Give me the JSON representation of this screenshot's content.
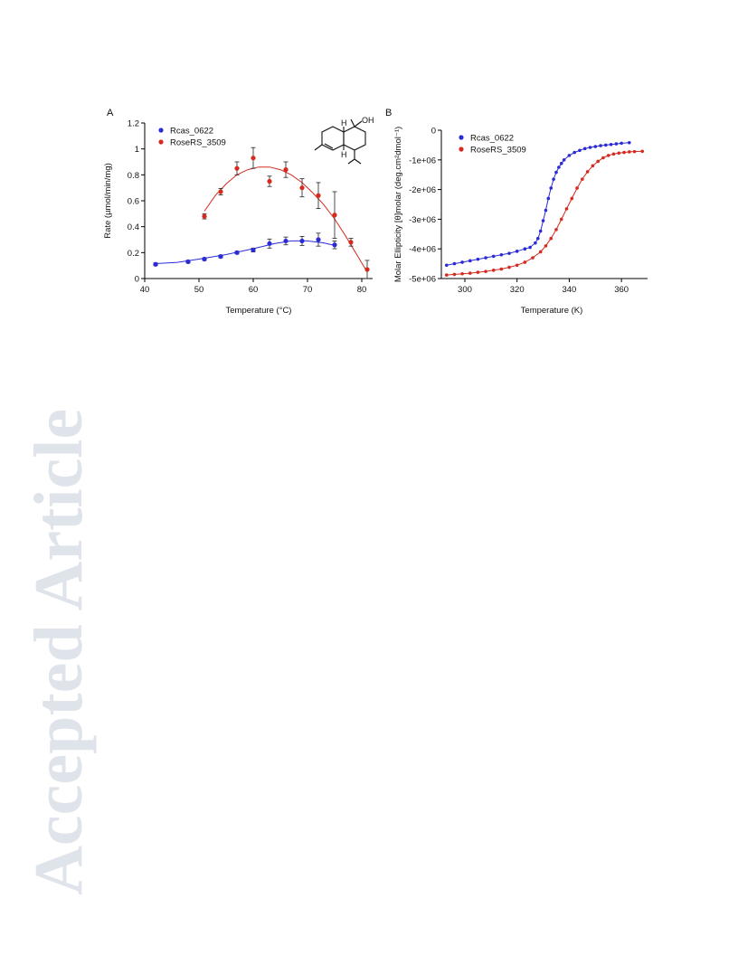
{
  "watermark": {
    "text": "Accepted Article"
  },
  "colors": {
    "rcas": "#2b2bd6",
    "rose": "#d42a1f",
    "watermark": "#dfe3ea"
  },
  "chart_data": [
    {
      "panel": "A",
      "type": "scatter",
      "xlabel": "Temperature (°C)",
      "ylabel": "Rate (µmol/min/mg)",
      "xlim": [
        40,
        82
      ],
      "ylim": [
        0,
        1.2
      ],
      "xticks": [
        "40",
        "50",
        "60",
        "70",
        "80"
      ],
      "yticks": [
        "0",
        "0.2",
        "0.4",
        "0.6",
        "0.8",
        "1",
        "1.2"
      ],
      "legend_position": "top-left",
      "structure": {
        "atom_labels": [
          "OH",
          "H",
          "H"
        ]
      },
      "series": [
        {
          "name": "Rcas_0622",
          "color": "#2b2bd6",
          "x": [
            42,
            48,
            51,
            54,
            57,
            60,
            63,
            66,
            69,
            72,
            75
          ],
          "y": [
            0.11,
            0.13,
            0.15,
            0.17,
            0.2,
            0.22,
            0.27,
            0.29,
            0.29,
            0.3,
            0.26
          ],
          "err": [
            0.01,
            0.01,
            0.01,
            0.01,
            0.01,
            0.015,
            0.035,
            0.03,
            0.035,
            0.05,
            0.03
          ],
          "fit": [
            [
              42,
              0.115
            ],
            [
              46,
              0.125
            ],
            [
              50,
              0.15
            ],
            [
              55,
              0.185
            ],
            [
              60,
              0.23
            ],
            [
              64,
              0.27
            ],
            [
              67,
              0.29
            ],
            [
              70,
              0.29
            ],
            [
              73,
              0.275
            ],
            [
              75,
              0.255
            ]
          ]
        },
        {
          "name": "RoseRS_3509",
          "color": "#d42a1f",
          "x": [
            51,
            54,
            57,
            60,
            63,
            66,
            69,
            72,
            75,
            78,
            81
          ],
          "y": [
            0.48,
            0.67,
            0.85,
            0.93,
            0.75,
            0.84,
            0.7,
            0.64,
            0.49,
            0.28,
            0.07
          ],
          "err": [
            0.02,
            0.025,
            0.05,
            0.08,
            0.04,
            0.06,
            0.07,
            0.1,
            0.18,
            0.03,
            0.07
          ],
          "fit": [
            [
              51,
              0.52
            ],
            [
              53,
              0.64
            ],
            [
              55,
              0.73
            ],
            [
              57,
              0.8
            ],
            [
              59,
              0.84
            ],
            [
              61,
              0.86
            ],
            [
              63,
              0.86
            ],
            [
              65,
              0.84
            ],
            [
              67,
              0.8
            ],
            [
              69,
              0.74
            ],
            [
              71,
              0.66
            ],
            [
              73,
              0.57
            ],
            [
              75,
              0.46
            ],
            [
              77,
              0.33
            ],
            [
              79,
              0.19
            ],
            [
              81,
              0.05
            ]
          ]
        }
      ]
    },
    {
      "panel": "B",
      "type": "scatter",
      "xlabel": "Temperature (K)",
      "ylabel": "Molar Ellipticity [θ]molar (deg.cm²dmol⁻¹)",
      "xlim": [
        291,
        370
      ],
      "ylim": [
        -5000000,
        0
      ],
      "xticks": [
        "300",
        "320",
        "340",
        "360"
      ],
      "yticks": [
        "0",
        "-1e+06",
        "-2e+06",
        "-3e+06",
        "-4e+06",
        "-5e+06"
      ],
      "legend_position": "top-left",
      "series": [
        {
          "name": "Rcas_0622",
          "color": "#2b2bd6",
          "x": [
            293,
            296,
            299,
            302,
            305,
            308,
            311,
            314,
            317,
            320,
            323,
            325,
            327,
            328,
            329,
            330,
            331,
            332,
            333,
            334,
            335,
            336,
            337,
            338,
            340,
            342,
            344,
            346,
            348,
            350,
            352,
            354,
            356,
            358,
            360,
            363
          ],
          "y": [
            -4550000,
            -4500000,
            -4450000,
            -4400000,
            -4350000,
            -4300000,
            -4250000,
            -4200000,
            -4150000,
            -4080000,
            -4000000,
            -3950000,
            -3800000,
            -3650000,
            -3400000,
            -3050000,
            -2700000,
            -2300000,
            -1950000,
            -1650000,
            -1420000,
            -1250000,
            -1120000,
            -1000000,
            -850000,
            -750000,
            -680000,
            -620000,
            -580000,
            -550000,
            -520000,
            -500000,
            -480000,
            -460000,
            -440000,
            -420000
          ]
        },
        {
          "name": "RoseRS_3509",
          "color": "#d42a1f",
          "x": [
            293,
            296,
            299,
            302,
            305,
            308,
            311,
            314,
            317,
            320,
            323,
            326,
            329,
            331,
            333,
            335,
            337,
            339,
            341,
            343,
            345,
            347,
            349,
            351,
            353,
            355,
            357,
            359,
            361,
            363,
            365,
            368
          ],
          "y": [
            -4880000,
            -4860000,
            -4840000,
            -4820000,
            -4790000,
            -4760000,
            -4720000,
            -4680000,
            -4620000,
            -4550000,
            -4450000,
            -4300000,
            -4100000,
            -3900000,
            -3650000,
            -3350000,
            -3000000,
            -2650000,
            -2300000,
            -1950000,
            -1650000,
            -1400000,
            -1200000,
            -1050000,
            -930000,
            -850000,
            -800000,
            -770000,
            -750000,
            -730000,
            -720000,
            -710000
          ]
        }
      ]
    }
  ]
}
